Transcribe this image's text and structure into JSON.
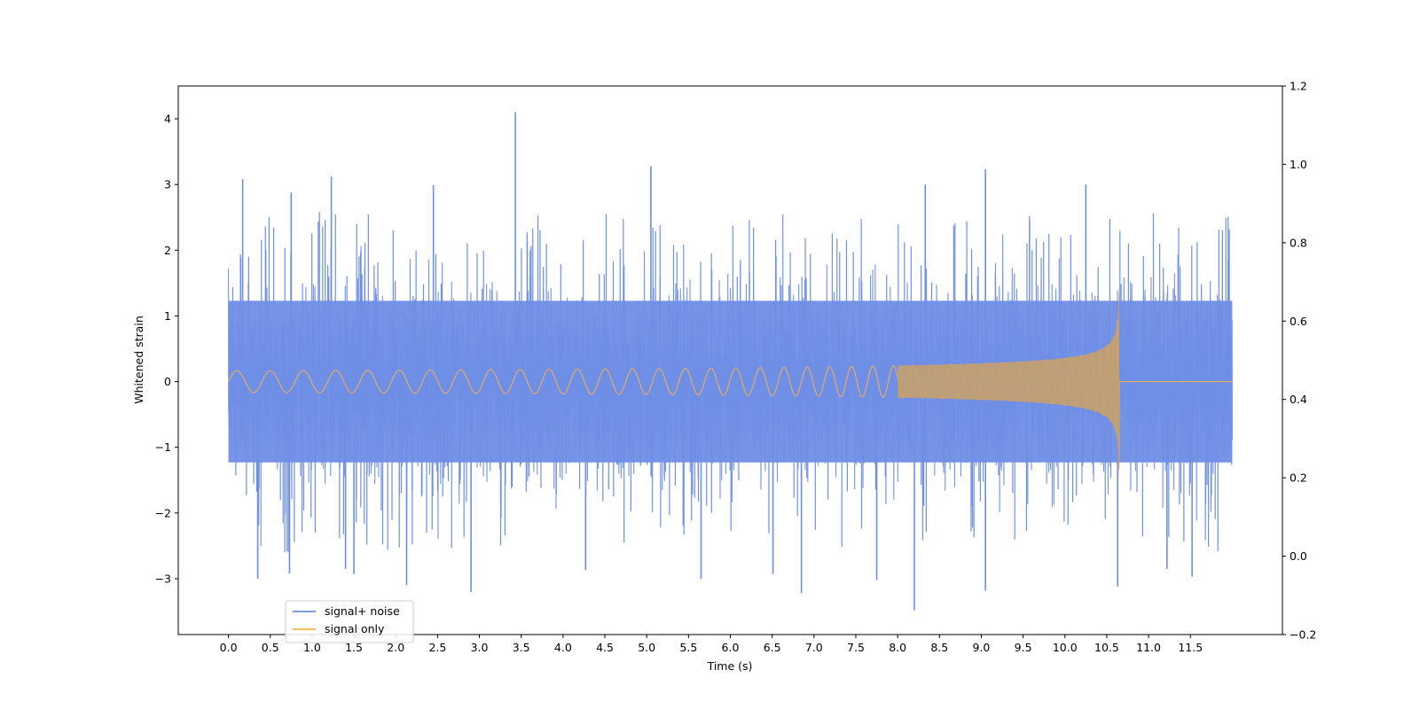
{
  "chart_data": {
    "type": "line",
    "title": "",
    "xlabel": "Time (s)",
    "ylabel": "Whitened strain",
    "y2label": "",
    "xlim": [
      -0.6,
      12.6
    ],
    "ylim": [
      -3.85,
      4.5
    ],
    "y2lim": [
      -0.2,
      1.2
    ],
    "x_ticks": [
      0.0,
      0.5,
      1.0,
      1.5,
      2.0,
      2.5,
      3.0,
      3.5,
      4.0,
      4.5,
      5.0,
      5.5,
      6.0,
      6.5,
      7.0,
      7.5,
      8.0,
      8.5,
      9.0,
      9.5,
      10.0,
      10.5,
      11.0,
      11.5
    ],
    "x_tick_labels": [
      "0.0",
      "0.5",
      "1.0",
      "1.5",
      "2.0",
      "2.5",
      "3.0",
      "3.5",
      "4.0",
      "4.5",
      "5.0",
      "5.5",
      "6.0",
      "6.5",
      "7.0",
      "7.5",
      "8.0",
      "8.5",
      "9.0",
      "9.5",
      "10.0",
      "10.5",
      "11.0",
      "11.5"
    ],
    "y_ticks": [
      -3,
      -2,
      -1,
      0,
      1,
      2,
      3,
      4
    ],
    "y_tick_labels": [
      "−3",
      "−2",
      "−1",
      "0",
      "1",
      "2",
      "3",
      "4"
    ],
    "y2_ticks": [
      -0.2,
      0.0,
      0.2,
      0.4,
      0.6,
      0.8,
      1.0,
      1.2
    ],
    "y2_tick_labels": [
      "−0.2",
      "0.0",
      "0.2",
      "0.4",
      "0.6",
      "0.8",
      "1.0",
      "1.2"
    ],
    "grid": false,
    "legend_position": "lower-left",
    "series": [
      {
        "name": "signal+ noise",
        "color": "#6f8ee6",
        "x_range": [
          0.0,
          12.0
        ],
        "typical_amplitude": 1.5,
        "spikes": [
          {
            "x": 0.17,
            "y": 3.08
          },
          {
            "x": 0.35,
            "y": -3.0
          },
          {
            "x": 0.75,
            "y": 2.88
          },
          {
            "x": 0.73,
            "y": -2.92
          },
          {
            "x": 1.23,
            "y": 3.12
          },
          {
            "x": 1.4,
            "y": -2.85
          },
          {
            "x": 1.5,
            "y": -2.93
          },
          {
            "x": 2.13,
            "y": -3.1
          },
          {
            "x": 2.45,
            "y": 2.99
          },
          {
            "x": 2.9,
            "y": -3.2
          },
          {
            "x": 3.43,
            "y": 4.1
          },
          {
            "x": 4.27,
            "y": -2.87
          },
          {
            "x": 5.05,
            "y": 3.28
          },
          {
            "x": 5.65,
            "y": -3.0
          },
          {
            "x": 6.51,
            "y": -2.93
          },
          {
            "x": 6.85,
            "y": -3.22
          },
          {
            "x": 7.75,
            "y": -3.02
          },
          {
            "x": 8.2,
            "y": -3.48
          },
          {
            "x": 8.33,
            "y": 3.0
          },
          {
            "x": 9.05,
            "y": 3.23
          },
          {
            "x": 9.05,
            "y": -3.18
          },
          {
            "x": 10.25,
            "y": 3.0
          },
          {
            "x": 10.63,
            "y": -3.12
          },
          {
            "x": 11.22,
            "y": -2.85
          },
          {
            "x": 11.52,
            "y": -2.97
          }
        ]
      },
      {
        "name": "signal only",
        "color": "#ffb347",
        "type": "chirp",
        "x_range": [
          0.0,
          12.0
        ],
        "merger_x": 10.65,
        "peak_amplitude": 1.5
      }
    ]
  }
}
